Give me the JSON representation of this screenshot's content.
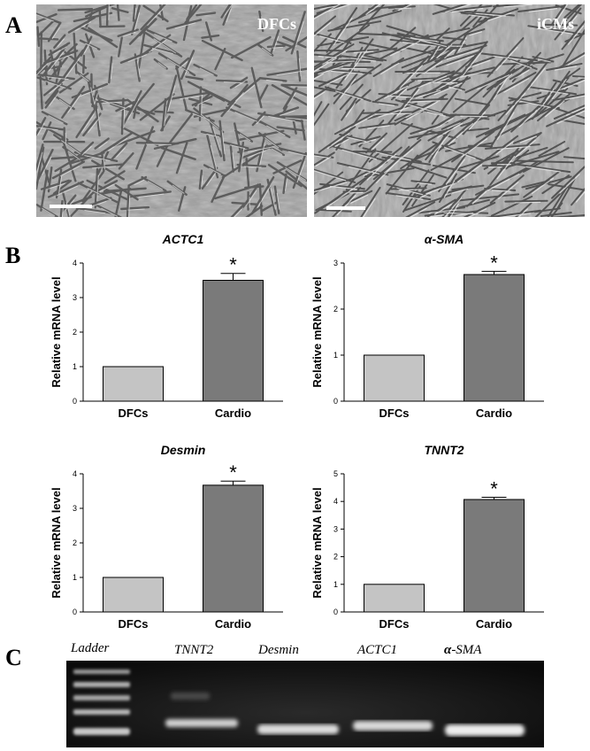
{
  "panel_labels": {
    "a": "A",
    "b": "B",
    "c": "C"
  },
  "micrographs": [
    {
      "label": "DFCs"
    },
    {
      "label": "iCMs"
    }
  ],
  "chart_data": [
    {
      "type": "bar",
      "title": "ACTC1",
      "categories": [
        "DFCs",
        "Cardio"
      ],
      "values": [
        1,
        3.5
      ],
      "errors": [
        0,
        0.2
      ],
      "ylabel": "Relative mRNA level",
      "ylim": [
        0,
        4
      ],
      "yticks": [
        "0",
        "1",
        "2",
        "3",
        "4"
      ],
      "significance": [
        "",
        "*"
      ],
      "colors": [
        "#c4c4c4",
        "#7a7a7a"
      ]
    },
    {
      "type": "bar",
      "title": "α-SMA",
      "categories": [
        "DFCs",
        "Cardio"
      ],
      "values": [
        1,
        2.75
      ],
      "errors": [
        0,
        0.07
      ],
      "ylabel": "Relative mRNA level",
      "ylim": [
        0,
        3
      ],
      "yticks": [
        "0",
        "1",
        "2",
        "3"
      ],
      "significance": [
        "",
        "*"
      ],
      "colors": [
        "#c4c4c4",
        "#7a7a7a"
      ]
    },
    {
      "type": "bar",
      "title": "Desmin",
      "categories": [
        "DFCs",
        "Cardio"
      ],
      "values": [
        1,
        3.67
      ],
      "errors": [
        0,
        0.12
      ],
      "ylabel": "Relative mRNA level",
      "ylim": [
        0,
        4
      ],
      "yticks": [
        "0",
        "1",
        "2",
        "3",
        "4"
      ],
      "significance": [
        "",
        "*"
      ],
      "colors": [
        "#c4c4c4",
        "#7a7a7a"
      ]
    },
    {
      "type": "bar",
      "title": "TNNT2",
      "categories": [
        "DFCs",
        "Cardio"
      ],
      "values": [
        1,
        4.07
      ],
      "errors": [
        0,
        0.08
      ],
      "ylabel": "Relative mRNA level",
      "ylim": [
        0,
        5
      ],
      "yticks": [
        "0",
        "1",
        "2",
        "3",
        "4",
        "5"
      ],
      "significance": [
        "",
        "*"
      ],
      "colors": [
        "#c4c4c4",
        "#7a7a7a"
      ]
    }
  ],
  "gel": {
    "lanes": [
      "Ladder",
      "TNNT2",
      "Desmin",
      "ACTC1",
      "-SMA"
    ],
    "alpha_glyph": "α"
  }
}
